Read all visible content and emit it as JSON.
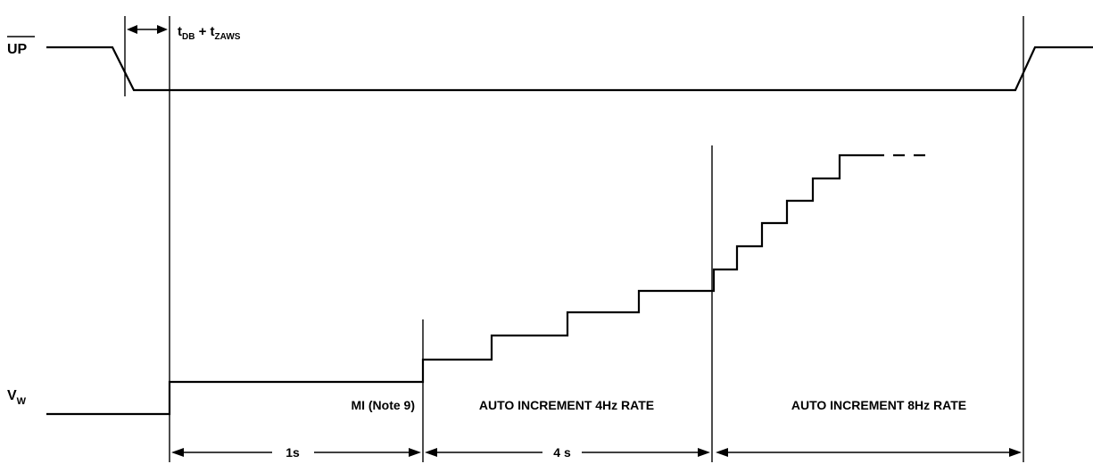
{
  "signals": {
    "up": "UP",
    "vw_main": "V",
    "vw_sub": "W"
  },
  "timing": {
    "tdb_t": "t",
    "tdb_sub": "DB",
    "plus": " + t",
    "tzaws_sub": "ZAWS"
  },
  "regions": {
    "mi": "MI (Note 9)",
    "auto4": "AUTO INCREMENT 4Hz RATE",
    "auto8": "AUTO INCREMENT 8Hz RATE"
  },
  "durations": {
    "one": "1s",
    "four": "4 s"
  }
}
